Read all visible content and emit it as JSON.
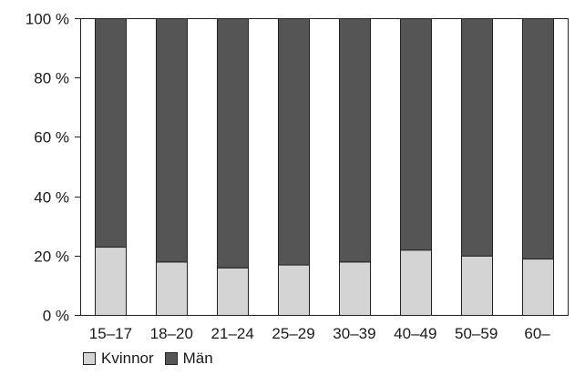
{
  "chart_data": {
    "type": "bar",
    "stacked": true,
    "categories": [
      "15–17",
      "18–20",
      "21–24",
      "25–29",
      "30–39",
      "40–49",
      "50–59",
      "60–"
    ],
    "series": [
      {
        "name": "Kvinnor",
        "color": "#d4d4d4",
        "values": [
          23,
          18,
          16,
          17,
          18,
          22,
          20,
          19
        ]
      },
      {
        "name": "Män",
        "color": "#555555",
        "values": [
          77,
          82,
          84,
          83,
          82,
          78,
          80,
          81
        ]
      }
    ],
    "y_ticks": [
      0,
      20,
      40,
      60,
      80,
      100
    ],
    "y_tick_labels": [
      "0 %",
      "20 %",
      "40 %",
      "60 %",
      "80 %",
      "100 %"
    ],
    "ylim": [
      0,
      100
    ],
    "grid": false,
    "legend_position": "bottom-left"
  }
}
